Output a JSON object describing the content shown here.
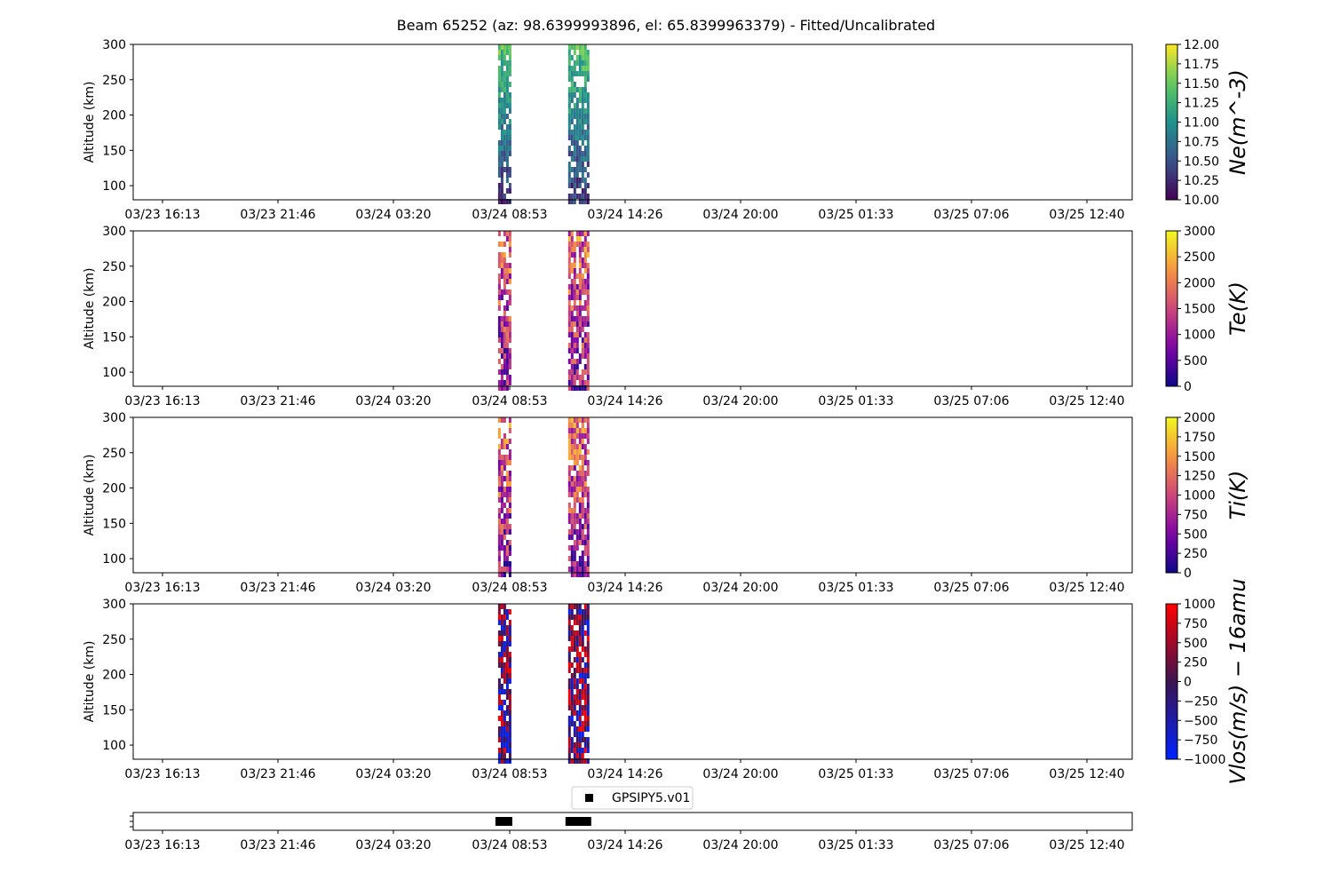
{
  "title": "Beam 65252 (az: 98.6399993896, el: 65.8399963379) - Fitted/Uncalibrated",
  "chart_data": [
    {
      "type": "heatmap",
      "parameter": "Ne",
      "ylabel": "Altitude (km)",
      "ylim": [
        80,
        300
      ],
      "yticks": [
        "100",
        "150",
        "200",
        "250",
        "300"
      ],
      "xticks": [
        "03/23 16:13",
        "03/23 21:46",
        "03/24 03:20",
        "03/24 08:53",
        "03/24 14:26",
        "03/24 20:00",
        "03/25 01:33",
        "03/25 07:06",
        "03/25 12:40"
      ],
      "colorbar": {
        "label": "Ne(m^-3)",
        "min": 10,
        "max": 12,
        "ticks": [
          "10.00",
          "10.25",
          "10.50",
          "10.75",
          "11.00",
          "11.25",
          "11.50",
          "11.75",
          "12.00"
        ],
        "colormap": "viridis"
      }
    },
    {
      "type": "heatmap",
      "parameter": "Te",
      "ylabel": "Altitude (km)",
      "ylim": [
        80,
        300
      ],
      "yticks": [
        "100",
        "150",
        "200",
        "250",
        "300"
      ],
      "xticks": [
        "03/23 16:13",
        "03/23 21:46",
        "03/24 03:20",
        "03/24 08:53",
        "03/24 14:26",
        "03/24 20:00",
        "03/25 01:33",
        "03/25 07:06",
        "03/25 12:40"
      ],
      "colorbar": {
        "label": "Te(K)",
        "min": 0,
        "max": 3000,
        "ticks": [
          "0",
          "500",
          "1000",
          "1500",
          "2000",
          "2500",
          "3000"
        ],
        "colormap": "plasma"
      }
    },
    {
      "type": "heatmap",
      "parameter": "Ti",
      "ylabel": "Altitude (km)",
      "ylim": [
        80,
        300
      ],
      "yticks": [
        "100",
        "150",
        "200",
        "250",
        "300"
      ],
      "xticks": [
        "03/23 16:13",
        "03/23 21:46",
        "03/24 03:20",
        "03/24 08:53",
        "03/24 14:26",
        "03/24 20:00",
        "03/25 01:33",
        "03/25 07:06",
        "03/25 12:40"
      ],
      "colorbar": {
        "label": "Ti(K)",
        "min": 0,
        "max": 2000,
        "ticks": [
          "0",
          "250",
          "500",
          "750",
          "1000",
          "1250",
          "1500",
          "1750",
          "2000"
        ],
        "colormap": "plasma"
      }
    },
    {
      "type": "heatmap",
      "parameter": "Vlos",
      "ylabel": "Altitude (km)",
      "ylim": [
        80,
        300
      ],
      "yticks": [
        "100",
        "150",
        "200",
        "250",
        "300"
      ],
      "xticks": [
        "03/23 16:13",
        "03/23 21:46",
        "03/24 03:20",
        "03/24 08:53",
        "03/24 14:26",
        "03/24 20:00",
        "03/25 01:33",
        "03/25 07:06",
        "03/25 12:40"
      ],
      "colorbar": {
        "label": "Vlos(m/s) − 16amu",
        "min": -1000,
        "max": 1000,
        "ticks": [
          "−1000",
          "−750",
          "−500",
          "−250",
          "0",
          "250",
          "500",
          "750",
          "1000"
        ],
        "colormap": "bwr-dark"
      }
    },
    {
      "type": "scatter",
      "legend": "GPSIPY5.v01",
      "legend_position": "top-center",
      "xticks": [
        "03/23 16:13",
        "03/23 21:46",
        "03/24 03:20",
        "03/24 08:53",
        "03/24 14:26",
        "03/24 20:00",
        "03/25 01:33",
        "03/25 07:06",
        "03/25 12:40"
      ]
    }
  ],
  "data_spans": [
    {
      "start": "03/24 08:21",
      "end": "03/24 08:53"
    },
    {
      "start": "03/24 11:43",
      "end": "03/24 12:40"
    }
  ]
}
